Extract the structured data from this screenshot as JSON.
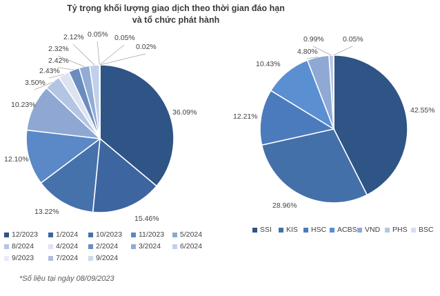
{
  "title_line1": "Tỷ trọng khối lượng giao dịch theo thời gian đáo hạn",
  "title_line2": "và tổ chức phát hành",
  "footnote": "*Số liệu tại ngày 08/09/2023",
  "chart_data": [
    {
      "type": "pie",
      "categories": [
        "12/2023",
        "1/2024",
        "10/2023",
        "11/2023",
        "5/2024",
        "8/2024",
        "4/2024",
        "2/2024",
        "3/2024",
        "6/2024",
        "9/2023",
        "7/2024",
        "9/2024"
      ],
      "values": [
        36.09,
        15.46,
        13.22,
        12.1,
        10.23,
        3.5,
        2.43,
        2.42,
        2.32,
        2.12,
        0.05,
        0.05,
        0.02
      ],
      "data_labels": [
        "36.09%",
        "15.46%",
        "13.22%",
        "12.10%",
        "10.23%",
        "3.50%",
        "2.43%",
        "2.42%",
        "2.32%",
        "2.12%",
        "0.05%",
        "0.05%",
        "0.02%"
      ],
      "colors": [
        "#2f5486",
        "#3d65a0",
        "#4672ab",
        "#5b88c6",
        "#8ea8d3",
        "#b4c5e4",
        "#dde3f1",
        "#6b8cbe",
        "#92acd6",
        "#c1d0ea",
        "#e6ecf6",
        "#aebfdc",
        "#cdd9ee"
      ],
      "legend_position": "bottom"
    },
    {
      "type": "pie",
      "categories": [
        "SSI",
        "KIS",
        "HSC",
        "ACBS",
        "VND",
        "PHS",
        "BSC"
      ],
      "values": [
        42.55,
        28.96,
        12.21,
        10.43,
        4.8,
        0.99,
        0.05
      ],
      "data_labels": [
        "42.55%",
        "28.96%",
        "12.21%",
        "10.43%",
        "4.80%",
        "0.99%",
        "0.05%"
      ],
      "colors": [
        "#2f5486",
        "#4470aa",
        "#4c7bbd",
        "#5a8fd1",
        "#8fa9d4",
        "#b6c6e3",
        "#d5deef"
      ],
      "legend_position": "bottom"
    }
  ]
}
